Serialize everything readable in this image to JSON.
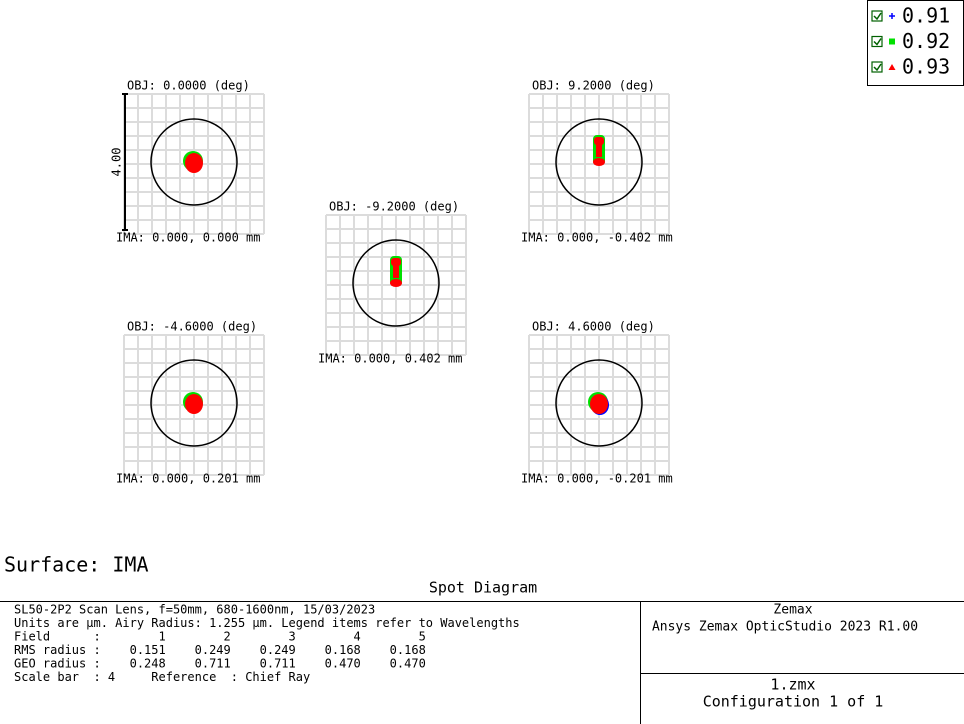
{
  "legend": {
    "items": [
      {
        "label": "0.91",
        "color": "#0000ff"
      },
      {
        "label": "0.92",
        "color": "#00e000"
      },
      {
        "label": "0.93",
        "color": "#ff0000"
      }
    ]
  },
  "plots": [
    {
      "obj": "OBJ: 0.0000 (deg)",
      "ima": "IMA: 0.000, 0.000 mm",
      "scale_bar": "4.00"
    },
    {
      "obj": "OBJ: -9.2000 (deg)",
      "ima": "IMA: 0.000, 0.402 mm"
    },
    {
      "obj": "OBJ: 9.2000 (deg)",
      "ima": "IMA: 0.000, -0.402 mm"
    },
    {
      "obj": "OBJ: -4.6000 (deg)",
      "ima": "IMA: 0.000, 0.201 mm"
    },
    {
      "obj": "OBJ: 4.6000 (deg)",
      "ima": "IMA: 0.000, -0.201 mm"
    }
  ],
  "surface": "Surface: IMA",
  "title": "Spot Diagram",
  "info_lines": [
    "SL50-2P2 Scan Lens, f=50mm, 680-1600nm, 15/03/2023",
    "Units are µm. Airy Radius: 1.255 µm. Legend items refer to Wavelengths",
    "Field      :        1        2        3        4        5",
    "RMS radius :    0.151    0.249    0.249    0.168    0.168",
    "GEO radius :    0.248    0.711    0.711    0.470    0.470",
    "Scale bar  : 4     Reference  : Chief Ray"
  ],
  "company": "Zemax",
  "product": "Ansys Zemax OpticStudio 2023 R1.00",
  "file": "1.zmx",
  "configuration": "Configuration 1 of 1"
}
